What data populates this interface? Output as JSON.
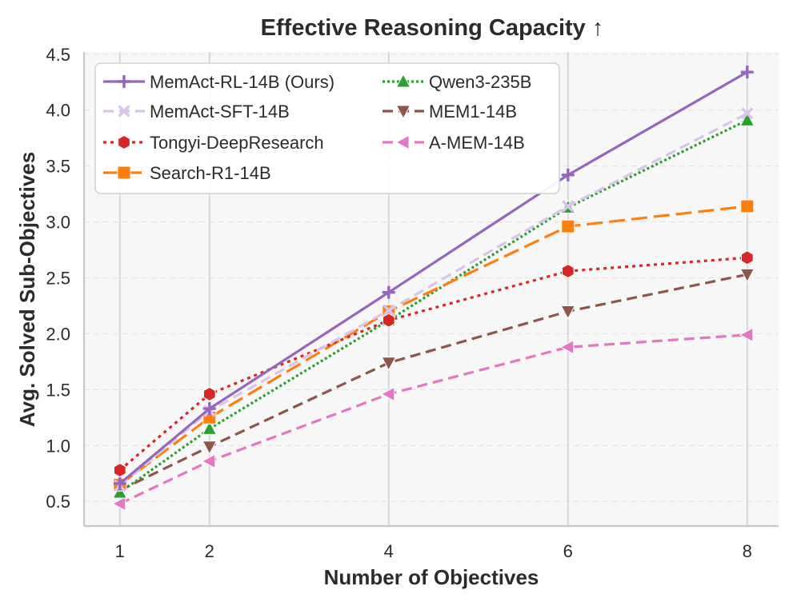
{
  "chart_data": {
    "type": "line",
    "title": "Effective Reasoning Capacity ↑",
    "xlabel": "Number of Objectives",
    "ylabel": "Avg. Solved Sub-Objectives",
    "x": [
      1,
      2,
      4,
      6,
      8
    ],
    "xlim": [
      0.6,
      8.35
    ],
    "ylim": [
      0.28,
      4.52
    ],
    "yticks": [
      "0.5",
      "1.0",
      "1.5",
      "2.0",
      "2.5",
      "3.0",
      "3.5",
      "4.0",
      "4.5"
    ],
    "xticks": [
      "1",
      "2",
      "4",
      "6",
      "8"
    ],
    "grid": true,
    "legend_position": "top-left",
    "series": [
      {
        "name": "MemAct-RL-14B (Ours)",
        "values": [
          0.66,
          1.33,
          2.37,
          3.42,
          4.34
        ],
        "color": "#9467bd",
        "marker": "plus",
        "dash": "solid"
      },
      {
        "name": "MemAct-SFT-14B",
        "values": [
          0.64,
          1.31,
          2.21,
          3.14,
          3.97
        ],
        "color": "#d9c4ec",
        "marker": "x",
        "dash": "dashed"
      },
      {
        "name": "Tongyi-DeepResearch",
        "values": [
          0.78,
          1.46,
          2.12,
          2.56,
          2.68
        ],
        "color": "#d62728",
        "marker": "hexagon",
        "dash": "dotted"
      },
      {
        "name": "Search-R1-14B",
        "values": [
          0.65,
          1.25,
          2.2,
          2.96,
          3.14
        ],
        "color": "#ff7f0e",
        "marker": "square",
        "dash": "longdash"
      },
      {
        "name": "Qwen3-235B",
        "values": [
          0.58,
          1.15,
          2.12,
          3.13,
          3.91
        ],
        "color": "#2ca02c",
        "marker": "triangle-up",
        "dash": "dense-dotted"
      },
      {
        "name": "MEM1-14B",
        "values": [
          0.6,
          0.99,
          1.74,
          2.2,
          2.53
        ],
        "color": "#8c564b",
        "marker": "triangle-down",
        "dash": "dashed"
      },
      {
        "name": "A-MEM-14B",
        "values": [
          0.48,
          0.86,
          1.46,
          1.88,
          1.99
        ],
        "color": "#e377c2",
        "marker": "triangle-left",
        "dash": "dashed"
      }
    ]
  }
}
